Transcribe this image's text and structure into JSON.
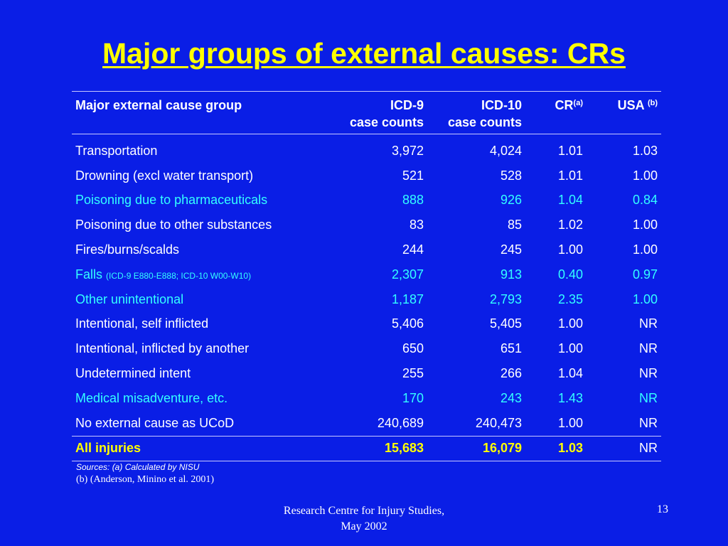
{
  "slide": {
    "title": "Major groups of external causes: CRs",
    "page_number": "13",
    "footer_line1": "Research Centre for Injury Studies,",
    "footer_line2": "May 2002",
    "sources_line1": "Sources:  (a) Calculated by NISU",
    "sources_line2": "(b) (Anderson, Minino et al. 2001)"
  },
  "colors": {
    "background": "#0a1ee6",
    "title": "#ffff00",
    "highlight_row": "#33ffff",
    "total_row": "#ffff00",
    "text": "#ffffff"
  },
  "table": {
    "headers": {
      "group": "Major external cause group",
      "icd9_l1": "ICD-9",
      "icd9_l2": "case counts",
      "icd10_l1": "ICD-10",
      "icd10_l2": "case counts",
      "cr": "CR",
      "cr_sup": "(a)",
      "usa": "USA",
      "usa_sup": "(b)"
    },
    "rows": [
      {
        "group": "Transportation",
        "note": "",
        "icd9": "3,972",
        "icd10": "4,024",
        "cr": "1.01",
        "usa": "1.03",
        "highlight": false
      },
      {
        "group": "Drowning (excl water transport)",
        "note": "",
        "icd9": "521",
        "icd10": "528",
        "cr": "1.01",
        "usa": "1.00",
        "highlight": false
      },
      {
        "group": "Poisoning due to pharmaceuticals",
        "note": "",
        "icd9": "888",
        "icd10": "926",
        "cr": "1.04",
        "usa": "0.84",
        "highlight": true
      },
      {
        "group": "Poisoning due to other substances",
        "note": "",
        "icd9": "83",
        "icd10": "85",
        "cr": "1.02",
        "usa": "1.00",
        "highlight": false
      },
      {
        "group": "Fires/burns/scalds",
        "note": "",
        "icd9": "244",
        "icd10": "245",
        "cr": "1.00",
        "usa": "1.00",
        "highlight": false
      },
      {
        "group": "Falls",
        "note": "(ICD-9 E880-E888; ICD-10 W00-W10)",
        "icd9": "2,307",
        "icd10": "913",
        "cr": "0.40",
        "usa": "0.97",
        "highlight": true
      },
      {
        "group": "Other unintentional",
        "note": "",
        "icd9": "1,187",
        "icd10": "2,793",
        "cr": "2.35",
        "usa": "1.00",
        "highlight": true
      },
      {
        "group": "Intentional, self inflicted",
        "note": "",
        "icd9": "5,406",
        "icd10": "5,405",
        "cr": "1.00",
        "usa": "NR",
        "highlight": false
      },
      {
        "group": "Intentional, inflicted by another",
        "note": "",
        "icd9": "650",
        "icd10": "651",
        "cr": "1.00",
        "usa": "NR",
        "highlight": false
      },
      {
        "group": "Undetermined intent",
        "note": "",
        "icd9": "255",
        "icd10": "266",
        "cr": "1.04",
        "usa": "NR",
        "highlight": false
      },
      {
        "group": "Medical misadventure, etc.",
        "note": "",
        "icd9": "170",
        "icd10": "243",
        "cr": "1.43",
        "usa": "NR",
        "highlight": true
      },
      {
        "group": "No external cause as UCoD",
        "note": "",
        "icd9": "240,689",
        "icd10": "240,473",
        "cr": "1.00",
        "usa": "NR",
        "highlight": false
      }
    ],
    "total": {
      "group": "All injuries",
      "icd9": "15,683",
      "icd10": "16,079",
      "cr": "1.03",
      "usa": "NR"
    }
  }
}
